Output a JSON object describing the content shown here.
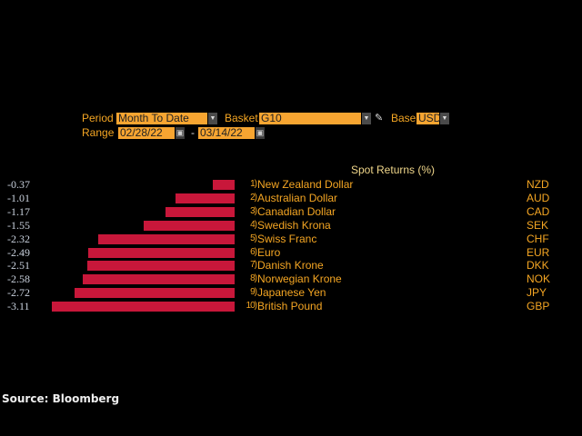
{
  "controls": {
    "period_label": "Period",
    "period_value": "Month To Date",
    "basket_label": "Basket",
    "basket_value": "G10",
    "base_label": "Base",
    "base_value": "USD",
    "range_label": "Range",
    "range_start": "02/28/22",
    "range_sep": "-",
    "range_end": "03/14/22"
  },
  "source": "Source: Bloomberg",
  "colors": {
    "bar": "#c8173a",
    "accent": "#f5a623",
    "field": "#f7a531"
  },
  "chart_data": {
    "type": "bar",
    "orientation": "horizontal",
    "title": "Spot Returns (%)",
    "ranks": [
      "1)",
      "2)",
      "3)",
      "4)",
      "5)",
      "6)",
      "7)",
      "8)",
      "9)",
      "10)"
    ],
    "categories": [
      "New Zealand Dollar",
      "Australian Dollar",
      "Canadian Dollar",
      "Swedish Krona",
      "Swiss Franc",
      "Euro",
      "Danish Krone",
      "Norwegian Krone",
      "Japanese Yen",
      "British Pound"
    ],
    "codes": [
      "NZD",
      "AUD",
      "CAD",
      "SEK",
      "CHF",
      "EUR",
      "DKK",
      "NOK",
      "JPY",
      "GBP"
    ],
    "values": [
      -0.37,
      -1.01,
      -1.17,
      -1.55,
      -2.32,
      -2.49,
      -2.51,
      -2.58,
      -2.72,
      -3.11
    ],
    "value_labels": [
      "-0.37",
      "-1.01",
      "-1.17",
      "-1.55",
      "-2.32",
      "-2.49",
      "-2.51",
      "-2.58",
      "-2.72",
      "-3.11"
    ]
  }
}
